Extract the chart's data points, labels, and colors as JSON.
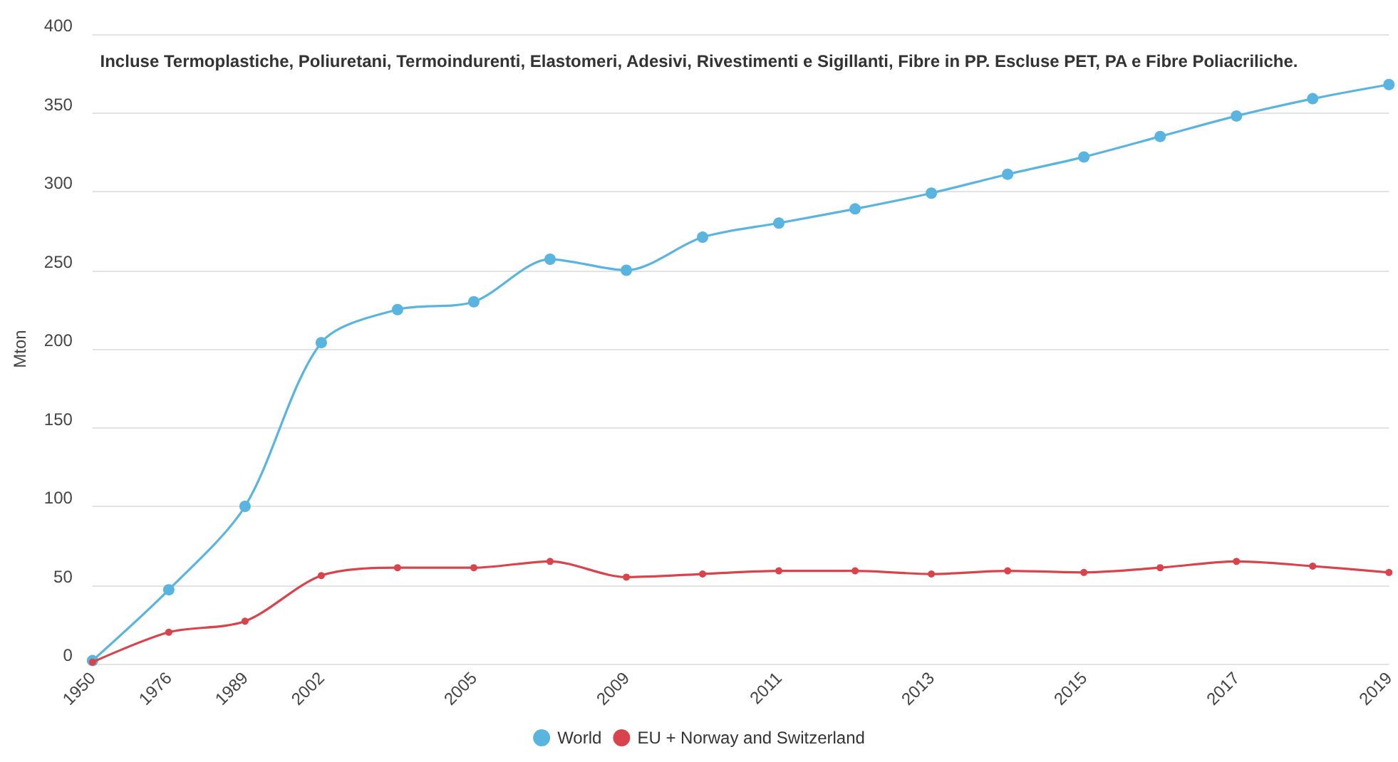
{
  "chart_data": {
    "type": "line",
    "ylabel": "Mton",
    "annotations": [
      "Incluse Termoplastiche, Poliuretani, Termoindurenti, Elastomeri, Adesivi, Rivestimenti e Sigillanti, Fibre in PP. Escluse PET, PA e Fibre Poliacriliche."
    ],
    "categories": [
      "1950",
      "1976",
      "1989",
      "2002",
      null,
      "2005",
      null,
      "2009",
      null,
      "2011",
      null,
      "2013",
      null,
      "2015",
      null,
      "2017",
      null,
      "2019"
    ],
    "series": [
      {
        "name": "World",
        "color": "#5ab4e0",
        "values": [
          2,
          47,
          100,
          204,
          225,
          230,
          257,
          250,
          271,
          280,
          289,
          299,
          311,
          322,
          335,
          348,
          359,
          368
        ]
      },
      {
        "name": "EU + Norway and Switzerland",
        "color": "#d9434b",
        "values": [
          1,
          20,
          27,
          56,
          61,
          61,
          65,
          55,
          57,
          59,
          59,
          57,
          59,
          58,
          61,
          65,
          62,
          58
        ]
      }
    ],
    "ylim": [
      0,
      400
    ],
    "yticks": [
      0,
      50,
      100,
      150,
      200,
      250,
      300,
      350,
      400
    ],
    "grid": "y",
    "legend": "bottom",
    "marker": "circle",
    "line_style": "solid"
  }
}
